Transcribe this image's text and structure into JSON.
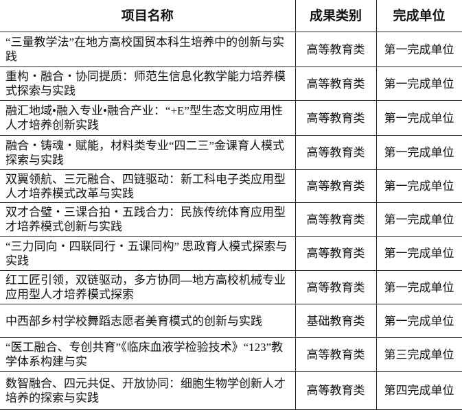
{
  "headers": {
    "name": "项目名称",
    "category": "成果类别",
    "unit": "完成单位"
  },
  "rows": [
    {
      "name": "“三量教学法”在地方高校国贸本科生培养中的创新与实践",
      "category": "高等教育类",
      "unit": "第一完成单位"
    },
    {
      "name": "重构・融合・协同提质：师范生信息化教学能力培养模式探索与实践",
      "category": "高等教育类",
      "unit": "第一完成单位"
    },
    {
      "name": "融汇地域•融入专业•融合产业：“+E”型生态文明应用性人才培养创新实践",
      "category": "高等教育类",
      "unit": "第一完成单位"
    },
    {
      "name": "融合・铸魂・赋能，材料类专业“四二三”金课育人模式探索与实践",
      "category": "高等教育类",
      "unit": "第一完成单位"
    },
    {
      "name": "双翼领航、三元融合、四链驱动：新工科电子类应用型人才培养模式改革与实践",
      "category": "高等教育类",
      "unit": "第一完成单位"
    },
    {
      "name": "双才合璧・三课合拍・五践合力：民族传统体育应用型才培养模式创新与实践",
      "category": "高等教育类",
      "unit": "第一完成单位"
    },
    {
      "name": "“三力同向・四联同行・五课同构” 思政育人模式探索与实践",
      "category": "高等教育类",
      "unit": "第一完成单位"
    },
    {
      "name": "红工匠引领，双链驱动，多方协同—地方高校机械专业应用型人才培养模式探索",
      "category": "高等教育类",
      "unit": "第一完成单位"
    },
    {
      "name": "中西部乡村学校舞蹈志愿者美育模式的创新与实践",
      "category": "基础教育类",
      "unit": "第一完成单位"
    },
    {
      "name": "“医工融合、专创共育”《临床血液学检验技术》“123”教学体系构建与实",
      "category": "高等教育类",
      "unit": "第三完成单位"
    },
    {
      "name": "数智融合、四元共促、开放协同：细胞生物学创新人才培养的探索与实践",
      "category": "高等教育类",
      "unit": "第四完成单位"
    }
  ]
}
